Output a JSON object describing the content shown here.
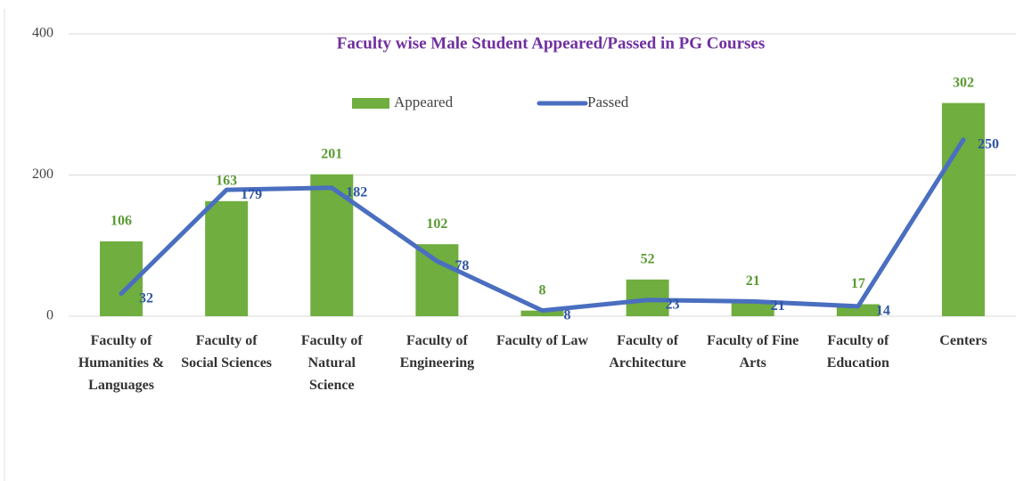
{
  "chart_data": {
    "type": "bar-line",
    "title": "Faculty wise  Male Student Appeared/Passed in PG Courses",
    "categories": [
      "Faculty of Humanities & Languages",
      "Faculty of Social Sciences",
      "Faculty of Natural Science",
      "Faculty of Engineering",
      "Faculty of Law",
      "Faculty of Architecture",
      "Faculty of Fine Arts",
      "Faculty of Education",
      "Centers"
    ],
    "series": [
      {
        "name": "Appeared",
        "type": "bar",
        "color": "#6fae3f",
        "values": [
          106,
          163,
          201,
          102,
          8,
          52,
          21,
          17,
          302
        ]
      },
      {
        "name": "Passed",
        "type": "line",
        "color": "#4a6fc0",
        "values": [
          32,
          179,
          182,
          78,
          8,
          23,
          21,
          14,
          250
        ]
      }
    ],
    "ylim": [
      0,
      400
    ],
    "yticks": [
      0,
      200,
      400
    ],
    "grid": true,
    "legend": "top"
  }
}
